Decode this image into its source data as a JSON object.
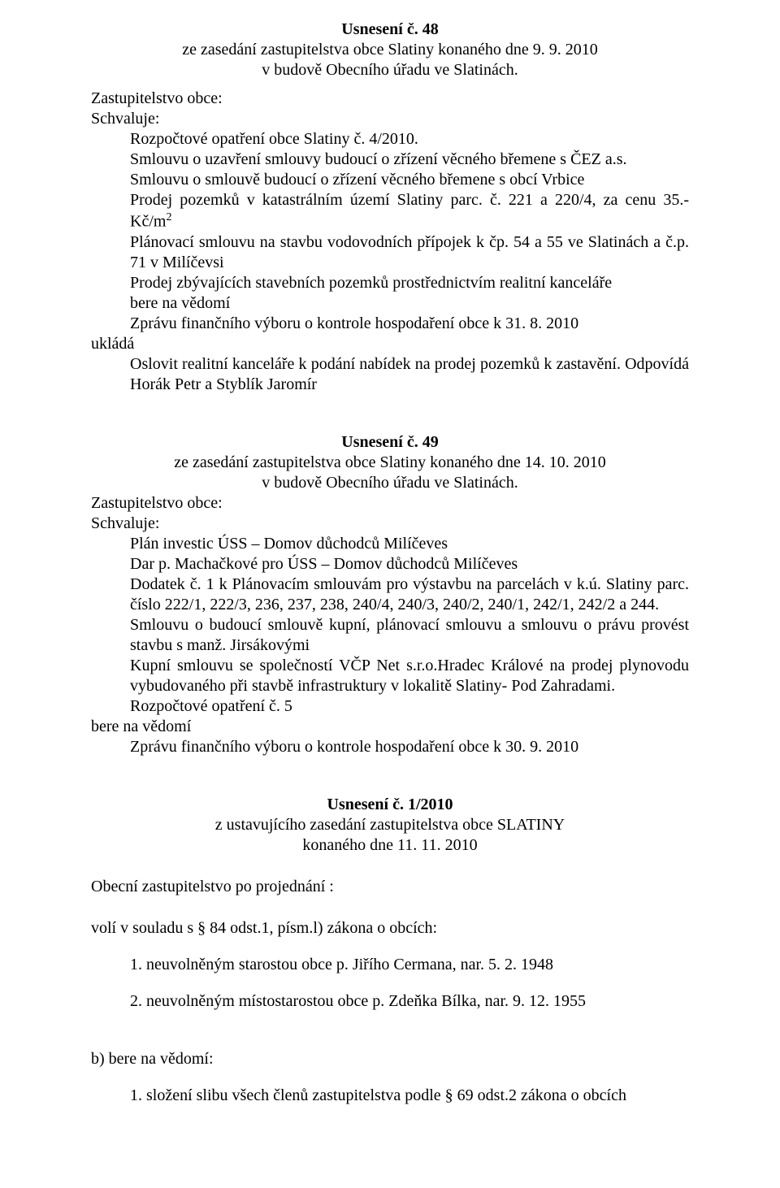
{
  "res48": {
    "title": "Usnesení č. 48",
    "sub1": "ze zasedání zastupitelstva obce Slatiny konaného dne 9. 9. 2010",
    "sub2": "v budově Obecního úřadu ve Slatinách.",
    "zast": "Zastupitelstvo obce:",
    "schvaluje": "Schvaluje:",
    "p1a": "Rozpočtové opatření obce Slatiny č. 4/2010.",
    "p1b": "Smlouvu o uzavření smlouvy budoucí o zřízení věcného břemene s ČEZ a.s.",
    "p1c": "Smlouvu o smlouvě budoucí o zřízení věcného břemene s obcí Vrbice",
    "p1d_pre": "Prodej pozemků v katastrálním území Slatiny parc. č. 221 a 220/4, za cenu 35.- Kč/m",
    "p1d_sup": "2",
    "p1e": "Plánovací smlouvu na stavbu vodovodních přípojek k čp. 54 a 55 ve Slatinách a č.p. 71 v Milíčevsi",
    "p1f": "Prodej zbývajících stavebních pozemků prostřednictvím realitní kanceláře",
    "bere": "bere na vědomí",
    "p1g": "Zprávu finančního výboru o kontrole hospodaření obce k 31. 8. 2010",
    "uklada": "ukládá",
    "p1h": "Oslovit realitní kanceláře k podání nabídek na prodej pozemků k zastavění. Odpovídá Horák Petr a Styblík Jaromír"
  },
  "res49": {
    "title": "Usnesení č. 49",
    "sub1": "ze zasedání zastupitelstva obce Slatiny konaného dne 14. 10. 2010",
    "sub2": "v budově Obecního úřadu ve Slatinách.",
    "zast": "Zastupitelstvo obce:",
    "schvaluje": "Schvaluje:",
    "p1": "Plán investic ÚSS – Domov důchodců Milíčeves",
    "p2": "Dar p. Machačkové pro ÚSS – Domov důchodců Milíčeves",
    "p3": "Dodatek č. 1 k Plánovacím smlouvám pro výstavbu na parcelách v k.ú. Slatiny parc. číslo 222/1, 222/3, 236, 237, 238, 240/4, 240/3, 240/2, 240/1, 242/1, 242/2 a 244.",
    "p4": "Smlouvu o budoucí smlouvě kupní, plánovací smlouvu a smlouvu o právu provést stavbu s manž. Jirsákovými",
    "p5": "Kupní smlouvu se společností VČP Net s.r.o.Hradec Králové na prodej plynovodu vybudovaného při stavbě infrastruktury v lokalitě Slatiny- Pod Zahradami.",
    "p6": "Rozpočtové opatření č. 5",
    "bere": "bere na vědomí",
    "p7": "Zprávu finančního výboru o kontrole hospodaření obce k 30. 9. 2010"
  },
  "res1": {
    "title": "Usnesení č. 1/2010",
    "sub1": "z ustavujícího zasedání zastupitelstva obce SLATINY",
    "sub2": "konaného dne 11. 11. 2010",
    "opz": "Obecní zastupitelstvo po projednání :",
    "voli": "volí v souladu s § 84 odst.1, písm.l)  zákona o obcích:",
    "v1": "1. neuvolněným starostou obce p. Jiřího Cermana, nar. 5. 2. 1948",
    "v2": "2. neuvolněným místostarostou obce p. Zdeňka Bílka, nar. 9. 12. 1955",
    "bere": "b) bere na vědomí:",
    "b1": "1. složení slibu všech členů zastupitelstva podle § 69 odst.2 zákona o obcích"
  }
}
